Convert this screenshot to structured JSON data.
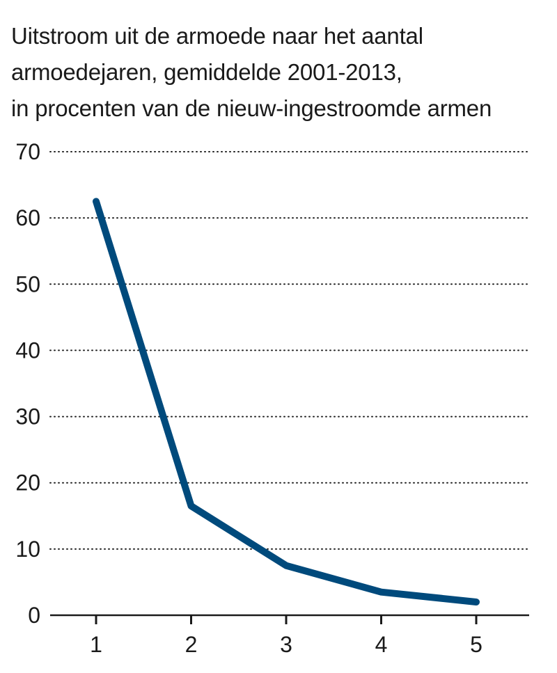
{
  "chart_data": {
    "type": "line",
    "title_lines": [
      "Uitstroom uit de armoede naar het aantal",
      "armoedejaren, gemiddelde 2001-2013,",
      "in procenten van de nieuw-ingestroomde armen"
    ],
    "xlabel": "",
    "ylabel": "",
    "x": [
      1,
      2,
      3,
      4,
      5
    ],
    "values": [
      62.5,
      16.5,
      7.5,
      3.5,
      2.0
    ],
    "x_ticks": [
      "1",
      "2",
      "3",
      "4",
      "5"
    ],
    "y_ticks": [
      0,
      10,
      20,
      30,
      40,
      50,
      60,
      70
    ],
    "ylim": [
      0,
      70
    ],
    "xlim": [
      0.5,
      5.5
    ],
    "grid": "horizontal dotted",
    "line_color": "#004a7c",
    "grid_color": "#222222",
    "axis_color": "#1a1a1a"
  }
}
